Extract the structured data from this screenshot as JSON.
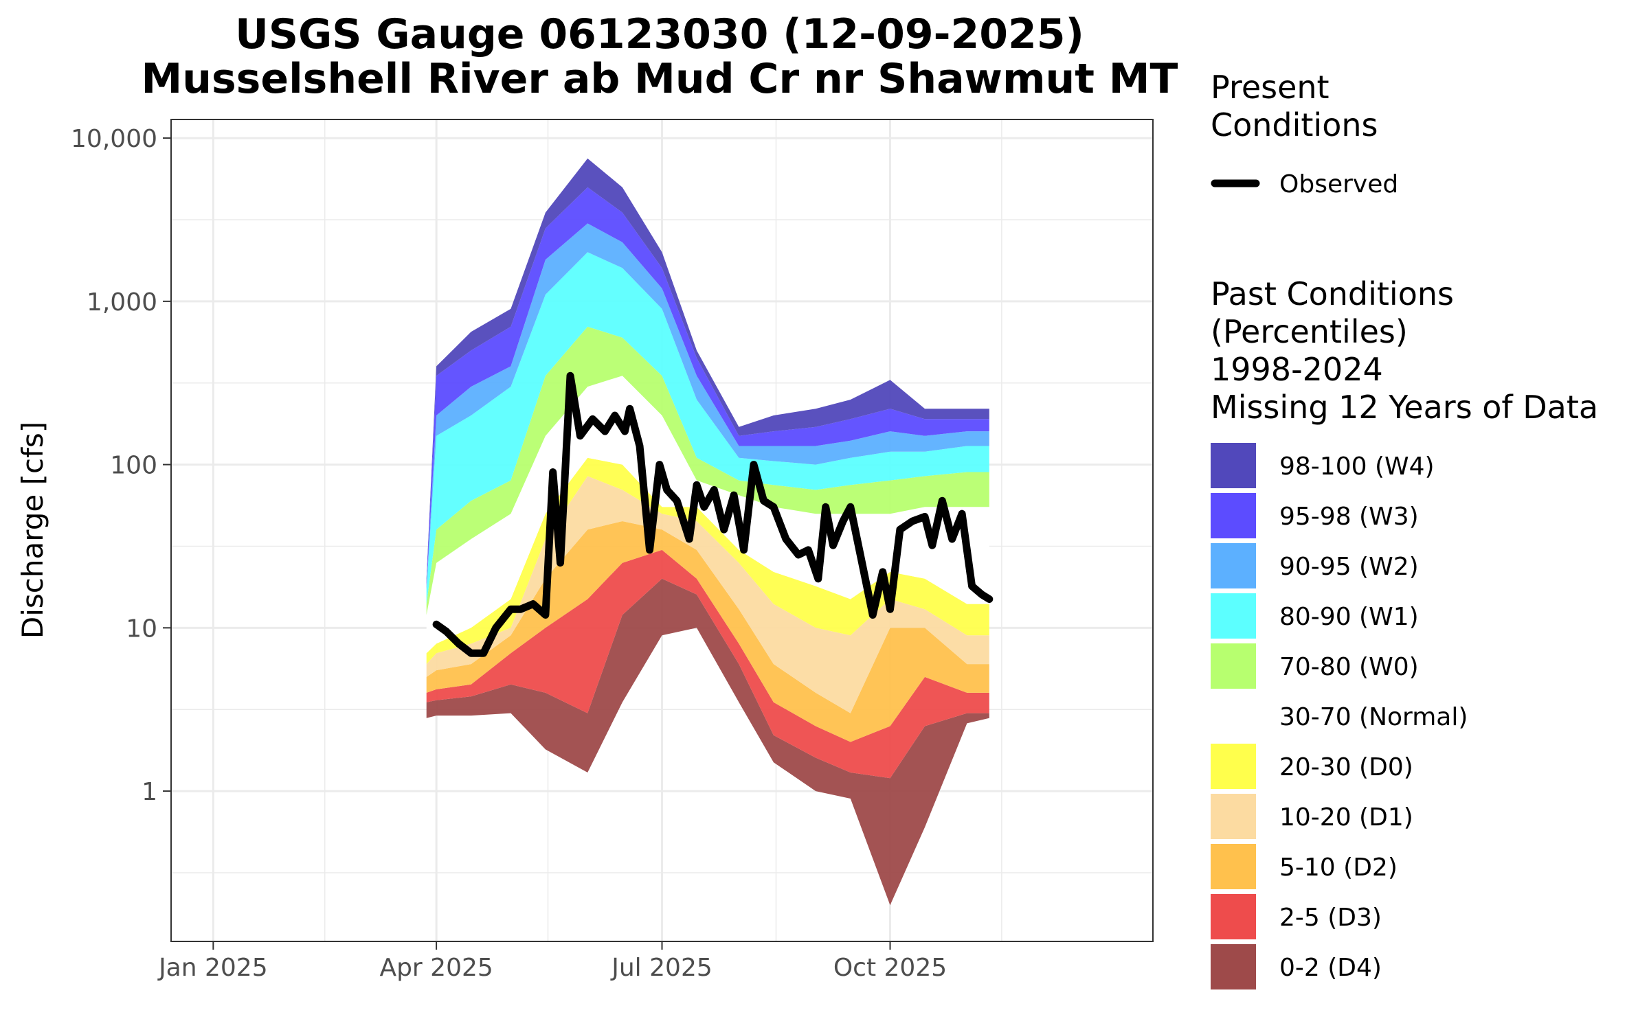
{
  "chart_data": {
    "type": "area",
    "title": "USGS Gauge 06123030 (12-09-2025)",
    "subtitle": "Musselshell River ab Mud Cr nr Shawmut MT",
    "ylabel": "Discharge [cfs]",
    "xlabel": "",
    "yscale": "log",
    "ylim": [
      0.12,
      13000
    ],
    "xlim": [
      "2024-12-15",
      "2026-01-15"
    ],
    "grid": true,
    "x_ticks": [
      {
        "date": "2025-01-01",
        "label": "Jan 2025"
      },
      {
        "date": "2025-04-01",
        "label": "Apr 2025"
      },
      {
        "date": "2025-07-01",
        "label": "Jul 2025"
      },
      {
        "date": "2025-10-01",
        "label": "Oct 2025"
      }
    ],
    "x_minor_ticks": [
      "2025-02-15",
      "2025-05-16",
      "2025-08-16",
      "2025-11-15"
    ],
    "y_ticks": [
      {
        "value": 1,
        "label": "1"
      },
      {
        "value": 10,
        "label": "10"
      },
      {
        "value": 100,
        "label": "100"
      },
      {
        "value": 1000,
        "label": "1,000"
      },
      {
        "value": 10000,
        "label": "10,000"
      }
    ],
    "y_minor_ticks": [
      0.3162,
      3.162,
      31.62,
      316.2,
      3162
    ],
    "x": [
      "2025-03-28",
      "2025-04-01",
      "2025-04-15",
      "2025-05-01",
      "2025-05-15",
      "2025-06-01",
      "2025-06-15",
      "2025-07-01",
      "2025-07-15",
      "2025-08-01",
      "2025-08-15",
      "2025-09-01",
      "2025-09-15",
      "2025-10-01",
      "2025-10-15",
      "2025-11-01",
      "2025-11-10"
    ],
    "percentile_bands": [
      {
        "name": "0-2 (D4)",
        "color": "#9e4a4a",
        "lower": [
          2.8,
          2.9,
          2.9,
          3.0,
          1.8,
          1.3,
          3.5,
          9.0,
          10.0,
          3.5,
          1.5,
          1.0,
          0.9,
          0.2,
          0.6,
          2.6,
          2.8
        ],
        "upper": [
          3.5,
          3.6,
          3.8,
          4.5,
          4.0,
          3.0,
          12.0,
          20.0,
          16.0,
          6.0,
          2.2,
          1.6,
          1.3,
          1.2,
          2.5,
          3.0,
          3.0
        ]
      },
      {
        "name": "2-5 (D3)",
        "color": "#ee4c4c",
        "lower": [
          3.5,
          3.6,
          3.8,
          4.5,
          4.0,
          3.0,
          12.0,
          20.0,
          16.0,
          6.0,
          2.2,
          1.6,
          1.3,
          1.2,
          2.5,
          3.0,
          3.0
        ],
        "upper": [
          4.0,
          4.2,
          4.5,
          7.0,
          10.0,
          15.0,
          25.0,
          30.0,
          20.0,
          8.0,
          3.5,
          2.5,
          2.0,
          2.5,
          5.0,
          4.0,
          4.0
        ]
      },
      {
        "name": "5-10 (D2)",
        "color": "#ffc14d",
        "lower": [
          4.0,
          4.2,
          4.5,
          7.0,
          10.0,
          15.0,
          25.0,
          30.0,
          20.0,
          8.0,
          3.5,
          2.5,
          2.0,
          2.5,
          5.0,
          4.0,
          4.0
        ],
        "upper": [
          5.0,
          5.5,
          6.0,
          9.0,
          20.0,
          40.0,
          45.0,
          40.0,
          30.0,
          13.0,
          6.0,
          4.0,
          3.0,
          10.0,
          10.0,
          6.0,
          6.0
        ]
      },
      {
        "name": "10-20 (D1)",
        "color": "#fcdba1",
        "lower": [
          5.0,
          5.5,
          6.0,
          9.0,
          20.0,
          40.0,
          45.0,
          40.0,
          30.0,
          13.0,
          6.0,
          4.0,
          3.0,
          10.0,
          10.0,
          6.0,
          6.0
        ],
        "upper": [
          6.0,
          7.0,
          8.0,
          10.0,
          35.0,
          85.0,
          70.0,
          50.0,
          45.0,
          25.0,
          14.0,
          10.0,
          9.0,
          15.0,
          13.0,
          9.0,
          9.0
        ]
      },
      {
        "name": "20-30 (D0)",
        "color": "#ffff4c",
        "lower": [
          6.0,
          7.0,
          8.0,
          10.0,
          35.0,
          85.0,
          70.0,
          50.0,
          45.0,
          25.0,
          14.0,
          10.0,
          9.0,
          15.0,
          13.0,
          9.0,
          9.0
        ],
        "upper": [
          7.0,
          8.0,
          10.0,
          15.0,
          50.0,
          110.0,
          100.0,
          55.0,
          55.0,
          30.0,
          22.0,
          18.0,
          15.0,
          22.0,
          20.0,
          14.0,
          14.0
        ]
      },
      {
        "name": "30-70 (Normal)",
        "color": "#ffffff",
        "lower": [
          7.0,
          8.0,
          10.0,
          15.0,
          50.0,
          110.0,
          100.0,
          55.0,
          55.0,
          30.0,
          22.0,
          18.0,
          15.0,
          22.0,
          20.0,
          14.0,
          14.0
        ],
        "upper": [
          12.0,
          25.0,
          35.0,
          50.0,
          150.0,
          300.0,
          350.0,
          200.0,
          80.0,
          65.0,
          55.0,
          50.0,
          50.0,
          50.0,
          55.0,
          55.0,
          55.0
        ]
      },
      {
        "name": "70-80 (W0)",
        "color": "#b7ff6f",
        "lower": [
          12.0,
          25.0,
          35.0,
          50.0,
          150.0,
          300.0,
          350.0,
          200.0,
          80.0,
          65.0,
          55.0,
          50.0,
          50.0,
          50.0,
          55.0,
          55.0,
          55.0
        ],
        "upper": [
          14.0,
          40.0,
          60.0,
          80.0,
          350.0,
          700.0,
          600.0,
          350.0,
          110.0,
          80.0,
          75.0,
          70.0,
          75.0,
          80.0,
          85.0,
          90.0,
          90.0
        ]
      },
      {
        "name": "80-90 (W1)",
        "color": "#5cffff",
        "lower": [
          14.0,
          40.0,
          60.0,
          80.0,
          350.0,
          700.0,
          600.0,
          350.0,
          110.0,
          80.0,
          75.0,
          70.0,
          75.0,
          80.0,
          85.0,
          90.0,
          90.0
        ],
        "upper": [
          17.0,
          150.0,
          200.0,
          300.0,
          1100.0,
          2000.0,
          1600.0,
          900.0,
          250.0,
          110.0,
          105.0,
          100.0,
          110.0,
          120.0,
          120.0,
          130.0,
          130.0
        ]
      },
      {
        "name": "90-95 (W2)",
        "color": "#5cb0ff",
        "lower": [
          17.0,
          150.0,
          200.0,
          300.0,
          1100.0,
          2000.0,
          1600.0,
          900.0,
          250.0,
          110.0,
          105.0,
          100.0,
          110.0,
          120.0,
          120.0,
          130.0,
          130.0
        ],
        "upper": [
          18.0,
          200.0,
          300.0,
          400.0,
          1800.0,
          3000.0,
          2300.0,
          1200.0,
          350.0,
          130.0,
          130.0,
          130.0,
          140.0,
          160.0,
          150.0,
          160.0,
          160.0
        ]
      },
      {
        "name": "95-98 (W3)",
        "color": "#5c4cff",
        "lower": [
          18.0,
          200.0,
          300.0,
          400.0,
          1800.0,
          3000.0,
          2300.0,
          1200.0,
          350.0,
          130.0,
          130.0,
          130.0,
          140.0,
          160.0,
          150.0,
          160.0,
          160.0
        ],
        "upper": [
          19.0,
          350.0,
          500.0,
          700.0,
          2800.0,
          5000.0,
          3500.0,
          1600.0,
          450.0,
          150.0,
          160.0,
          170.0,
          190.0,
          220.0,
          190.0,
          190.0,
          190.0
        ]
      },
      {
        "name": "98-100 (W4)",
        "color": "#5148bb",
        "lower": [
          19.0,
          350.0,
          500.0,
          700.0,
          2800.0,
          5000.0,
          3500.0,
          1600.0,
          450.0,
          150.0,
          160.0,
          170.0,
          190.0,
          220.0,
          190.0,
          190.0,
          190.0
        ],
        "upper": [
          20.0,
          400.0,
          650.0,
          900.0,
          3500.0,
          7500.0,
          5000.0,
          2000.0,
          500.0,
          170.0,
          200.0,
          220.0,
          250.0,
          330.0,
          220.0,
          220.0,
          220.0
        ]
      }
    ],
    "observed": {
      "name": "Observed",
      "color": "#000000",
      "points": [
        [
          "2025-04-01",
          10.5
        ],
        [
          "2025-04-05",
          9.5
        ],
        [
          "2025-04-10",
          8.0
        ],
        [
          "2025-04-15",
          7.0
        ],
        [
          "2025-04-20",
          7.0
        ],
        [
          "2025-04-25",
          10.0
        ],
        [
          "2025-05-01",
          13.0
        ],
        [
          "2025-05-05",
          13.0
        ],
        [
          "2025-05-10",
          14.0
        ],
        [
          "2025-05-15",
          12.0
        ],
        [
          "2025-05-18",
          90.0
        ],
        [
          "2025-05-21",
          25.0
        ],
        [
          "2025-05-25",
          350.0
        ],
        [
          "2025-05-29",
          150.0
        ],
        [
          "2025-06-03",
          190.0
        ],
        [
          "2025-06-08",
          160.0
        ],
        [
          "2025-06-12",
          200.0
        ],
        [
          "2025-06-16",
          160.0
        ],
        [
          "2025-06-18",
          220.0
        ],
        [
          "2025-06-22",
          130.0
        ],
        [
          "2025-06-26",
          30.0
        ],
        [
          "2025-06-30",
          100.0
        ],
        [
          "2025-07-03",
          70.0
        ],
        [
          "2025-07-07",
          60.0
        ],
        [
          "2025-07-12",
          35.0
        ],
        [
          "2025-07-15",
          75.0
        ],
        [
          "2025-07-18",
          55.0
        ],
        [
          "2025-07-22",
          70.0
        ],
        [
          "2025-07-26",
          40.0
        ],
        [
          "2025-07-30",
          65.0
        ],
        [
          "2025-08-03",
          30.0
        ],
        [
          "2025-08-07",
          100.0
        ],
        [
          "2025-08-11",
          60.0
        ],
        [
          "2025-08-15",
          55.0
        ],
        [
          "2025-08-20",
          35.0
        ],
        [
          "2025-08-25",
          28.0
        ],
        [
          "2025-08-29",
          30.0
        ],
        [
          "2025-09-02",
          20.0
        ],
        [
          "2025-09-05",
          55.0
        ],
        [
          "2025-09-08",
          32.0
        ],
        [
          "2025-09-12",
          45.0
        ],
        [
          "2025-09-15",
          55.0
        ],
        [
          "2025-09-19",
          28.0
        ],
        [
          "2025-09-24",
          12.0
        ],
        [
          "2025-09-28",
          22.0
        ],
        [
          "2025-10-01",
          13.0
        ],
        [
          "2025-10-05",
          40.0
        ],
        [
          "2025-10-10",
          45.0
        ],
        [
          "2025-10-15",
          48.0
        ],
        [
          "2025-10-18",
          32.0
        ],
        [
          "2025-10-22",
          60.0
        ],
        [
          "2025-10-26",
          35.0
        ],
        [
          "2025-10-30",
          50.0
        ],
        [
          "2025-11-03",
          18.0
        ],
        [
          "2025-11-07",
          16.0
        ],
        [
          "2025-11-10",
          15.0
        ]
      ]
    },
    "legend": {
      "present_title_lines": [
        "Present",
        "Conditions"
      ],
      "present_entry": "Observed",
      "past_title_lines": [
        "Past Conditions",
        "(Percentiles)",
        "1998-2024",
        "Missing 12 Years of Data"
      ],
      "entries": [
        "98-100 (W4)",
        "95-98 (W3)",
        "90-95 (W2)",
        "80-90 (W1)",
        "70-80 (W0)",
        "30-70 (Normal)",
        "20-30 (D0)",
        "10-20 (D1)",
        "5-10 (D2)",
        "2-5 (D3)",
        "0-2 (D4)"
      ]
    }
  }
}
